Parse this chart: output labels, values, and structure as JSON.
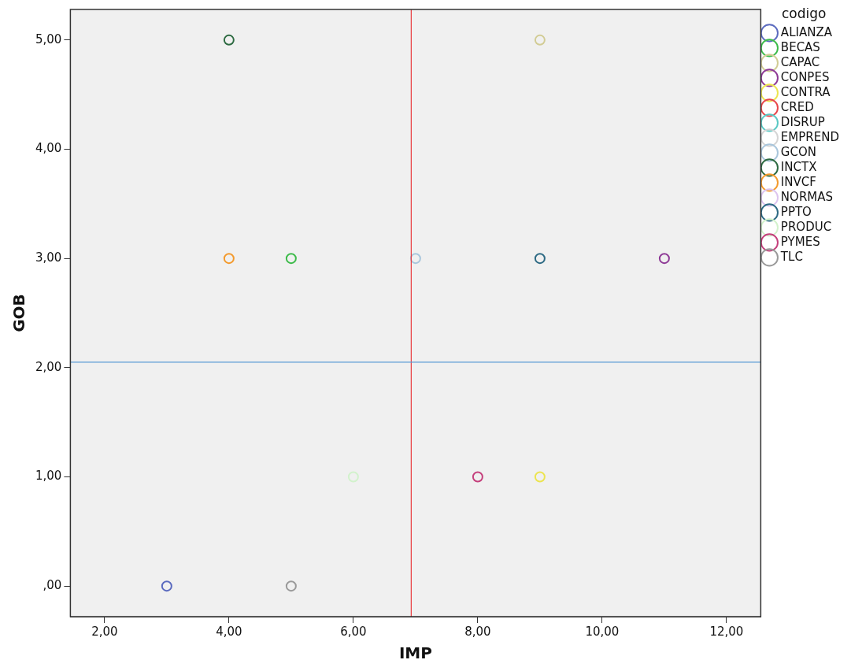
{
  "chart_data": {
    "type": "scatter",
    "xlabel": "IMP",
    "ylabel": "GOB",
    "legend_title": "codigo",
    "legend": "right",
    "grid": false,
    "marker": "circle",
    "xlim": [
      1.45,
      12.55
    ],
    "ylim": [
      -0.28,
      5.28
    ],
    "xticks": [
      {
        "value": 2,
        "label": "2,00"
      },
      {
        "value": 4,
        "label": "4,00"
      },
      {
        "value": 6,
        "label": "6,00"
      },
      {
        "value": 8,
        "label": "8,00"
      },
      {
        "value": 10,
        "label": "10,00"
      },
      {
        "value": 12,
        "label": "12,00"
      }
    ],
    "yticks": [
      {
        "value": 0,
        "label": ",00"
      },
      {
        "value": 1,
        "label": "1,00"
      },
      {
        "value": 2,
        "label": "2,00"
      },
      {
        "value": 3,
        "label": "3,00"
      },
      {
        "value": 4,
        "label": "4,00"
      },
      {
        "value": 5,
        "label": "5,00"
      }
    ],
    "ref_lines": [
      {
        "axis": "x",
        "value": 6.93,
        "color": "#e8383d"
      },
      {
        "axis": "y",
        "value": 2.05,
        "color": "#5b9bd5"
      }
    ],
    "series": [
      {
        "name": "ALIANZA",
        "color": "#5b6bbf",
        "x": [
          3
        ],
        "values": [
          0
        ]
      },
      {
        "name": "BECAS",
        "color": "#3dbb4a",
        "x": [
          5
        ],
        "values": [
          3
        ]
      },
      {
        "name": "CAPAC",
        "color": "#d2cc95",
        "x": [
          9
        ],
        "values": [
          5
        ]
      },
      {
        "name": "CONPES",
        "color": "#8e3a96",
        "x": [
          11
        ],
        "values": [
          3
        ]
      },
      {
        "name": "CONTRA",
        "color": "#ece450",
        "x": [
          9
        ],
        "values": [
          1
        ]
      },
      {
        "name": "CRED",
        "color": "#e8474b"
      },
      {
        "name": "DISRUP",
        "color": "#5ac8c4"
      },
      {
        "name": "EMPREND",
        "color": "#d4d4d4"
      },
      {
        "name": "GCON",
        "color": "#a9c6dc",
        "x": [
          7
        ],
        "values": [
          3
        ]
      },
      {
        "name": "INCTX",
        "color": "#2e6b42",
        "x": [
          4
        ],
        "values": [
          5
        ]
      },
      {
        "name": "INVCF",
        "color": "#f39a2d",
        "x": [
          4
        ],
        "values": [
          3
        ]
      },
      {
        "name": "NORMAS",
        "color": "#dcc4ef"
      },
      {
        "name": "PPTO",
        "color": "#2d6a84",
        "x": [
          9
        ],
        "values": [
          3
        ]
      },
      {
        "name": "PRODUC",
        "color": "#d2f2cc",
        "x": [
          6
        ],
        "values": [
          1
        ]
      },
      {
        "name": "PYMES",
        "color": "#c5407c",
        "x": [
          8
        ],
        "values": [
          1
        ]
      },
      {
        "name": "TLC",
        "color": "#9a9a9a",
        "x": [
          5
        ],
        "values": [
          0
        ]
      }
    ]
  }
}
